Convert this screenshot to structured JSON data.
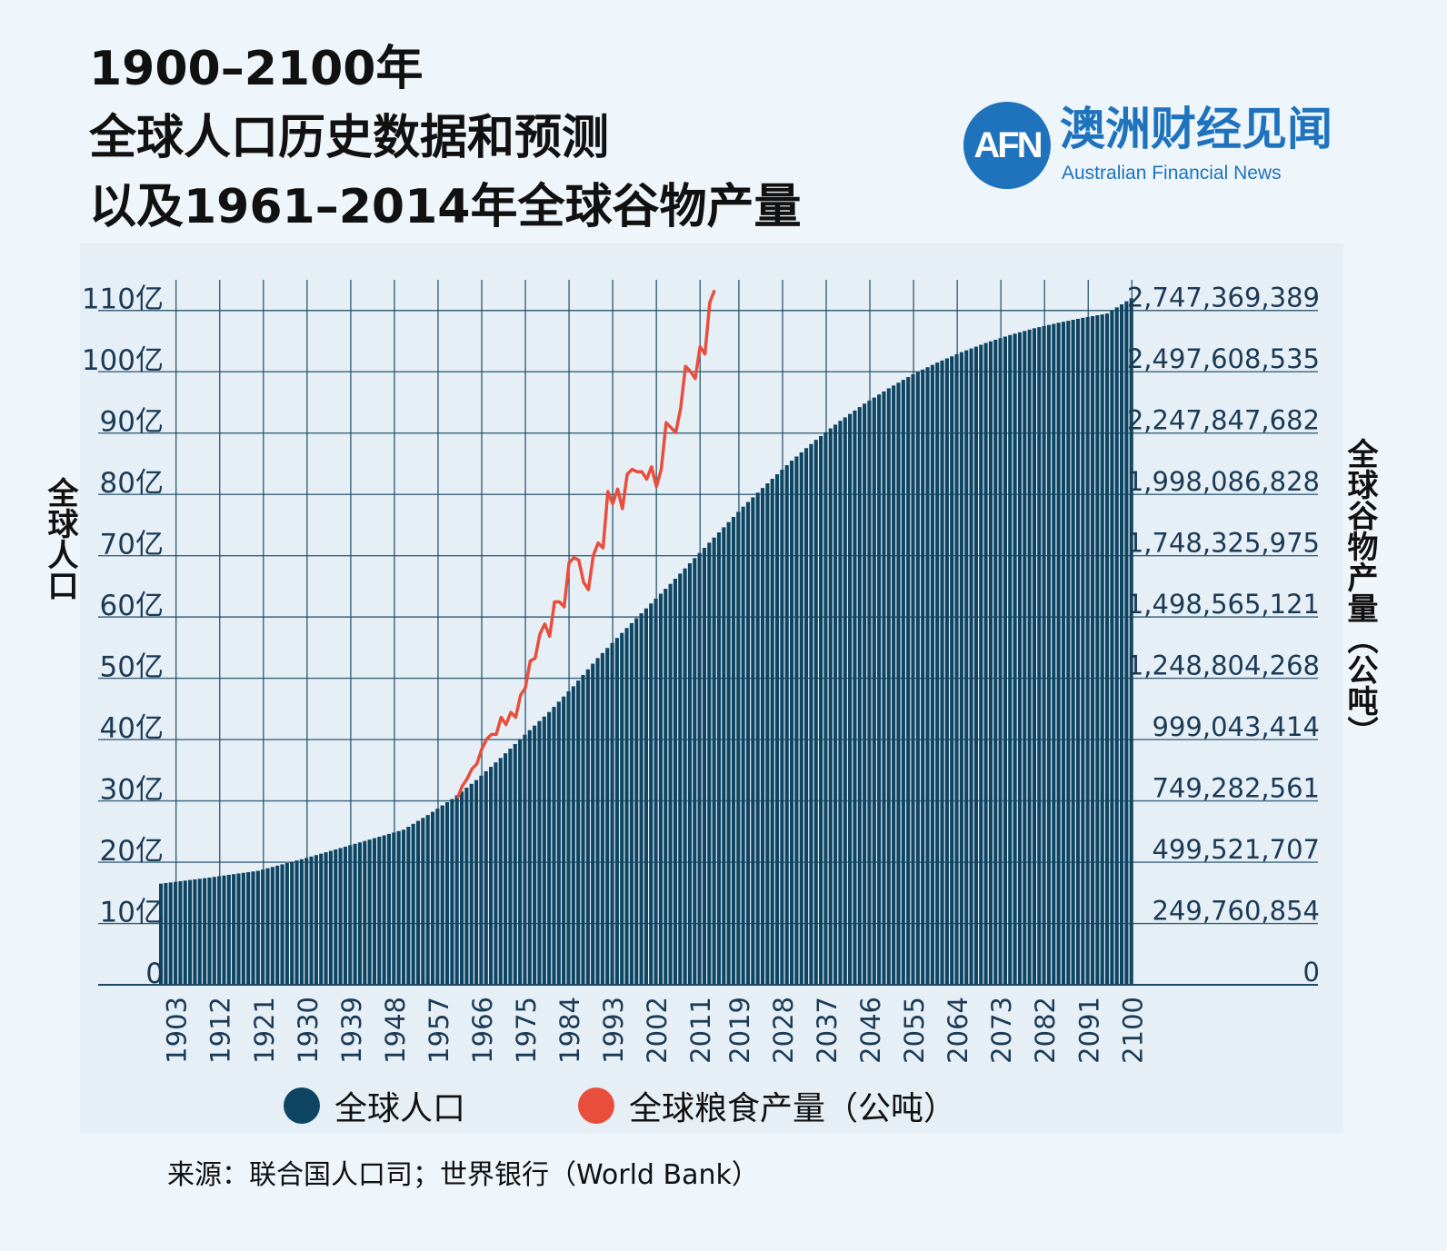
{
  "title": {
    "line1": "1900–2100年",
    "line2": "全球人口历史数据和预测",
    "line3": "以及1961–2014年全球谷物产量"
  },
  "logo": {
    "mark": "AFN",
    "cn": "澳洲财经见闻",
    "en": "Australian Financial News"
  },
  "colors": {
    "population": "#0d4563",
    "grain": "#e94e3c",
    "grid": "#1b4a66",
    "logo": "#1f73bd"
  },
  "legend": {
    "population_label": "全球人口",
    "grain_label": "全球粮食产量（公吨）"
  },
  "source": "来源：联合国人口司；世界银行（World Bank）",
  "chart_data": {
    "type": "bar",
    "left_axis_title": "全球人口",
    "right_axis_title": "全球谷物产量（公吨）",
    "left_ticks": [
      "0",
      "10亿",
      "20亿",
      "30亿",
      "40亿",
      "50亿",
      "60亿",
      "70亿",
      "80亿",
      "90亿",
      "100亿",
      "110亿"
    ],
    "right_ticks": [
      "0",
      "249,760,854",
      "499,521,707",
      "749,282,561",
      "999,043,414",
      "1,248,804,268",
      "1,498,565,121",
      "1,748,325,975",
      "1,998,086,828",
      "2,247,847,682",
      "2,497,608,535",
      "2,747,369,389"
    ],
    "x_tick_labels": [
      "1903",
      "1912",
      "1921",
      "1930",
      "1939",
      "1948",
      "1957",
      "1966",
      "1975",
      "1984",
      "1993",
      "2002",
      "2011",
      "2019",
      "2028",
      "2037",
      "2046",
      "2055",
      "2064",
      "2073",
      "2082",
      "2091",
      "2100"
    ],
    "x_range": [
      1900,
      2100
    ],
    "y_left_range_billion": [
      0,
      11.5
    ],
    "y_right_range_tonnes": [
      0,
      2872249816
    ],
    "population_series": {
      "name": "全球人口",
      "unit": "billion",
      "years": [
        1900,
        1910,
        1920,
        1930,
        1940,
        1950,
        1955,
        1960,
        1965,
        1970,
        1975,
        1980,
        1985,
        1990,
        1995,
        2000,
        2005,
        2010,
        2015,
        2020,
        2025,
        2030,
        2035,
        2040,
        2045,
        2050,
        2055,
        2060,
        2065,
        2070,
        2075,
        2080,
        2085,
        2090,
        2095,
        2100
      ],
      "values": [
        1.65,
        1.75,
        1.86,
        2.07,
        2.3,
        2.53,
        2.77,
        3.03,
        3.34,
        3.7,
        4.08,
        4.45,
        4.87,
        5.33,
        5.74,
        6.14,
        6.54,
        6.96,
        7.38,
        7.8,
        8.18,
        8.55,
        8.89,
        9.2,
        9.48,
        9.73,
        9.96,
        10.15,
        10.32,
        10.47,
        10.6,
        10.71,
        10.8,
        10.88,
        10.95,
        11.2
      ]
    },
    "grain_series": {
      "name": "全球粮食产量（公吨）",
      "unit": "tonnes",
      "years": [
        1961,
        1962,
        1963,
        1964,
        1965,
        1966,
        1967,
        1968,
        1969,
        1970,
        1971,
        1972,
        1973,
        1974,
        1975,
        1976,
        1977,
        1978,
        1979,
        1980,
        1981,
        1982,
        1983,
        1984,
        1985,
        1986,
        1987,
        1988,
        1989,
        1990,
        1991,
        1992,
        1993,
        1994,
        1995,
        1996,
        1997,
        1998,
        1999,
        2000,
        2001,
        2002,
        2003,
        2004,
        2005,
        2006,
        2007,
        2008,
        2009,
        2010,
        2011,
        2012,
        2013,
        2014
      ],
      "values": [
        760000000,
        810000000,
        840000000,
        880000000,
        900000000,
        960000000,
        1000000000,
        1020000000,
        1020000000,
        1090000000,
        1060000000,
        1110000000,
        1090000000,
        1180000000,
        1210000000,
        1320000000,
        1330000000,
        1430000000,
        1470000000,
        1420000000,
        1560000000,
        1560000000,
        1540000000,
        1720000000,
        1740000000,
        1730000000,
        1640000000,
        1610000000,
        1750000000,
        1800000000,
        1780000000,
        2010000000,
        1960000000,
        2020000000,
        1940000000,
        2080000000,
        2100000000,
        2090000000,
        2090000000,
        2060000000,
        2110000000,
        2030000000,
        2100000000,
        2290000000,
        2270000000,
        2250000000,
        2350000000,
        2520000000,
        2500000000,
        2470000000,
        2600000000,
        2570000000,
        2780000000,
        2830000000
      ]
    }
  }
}
